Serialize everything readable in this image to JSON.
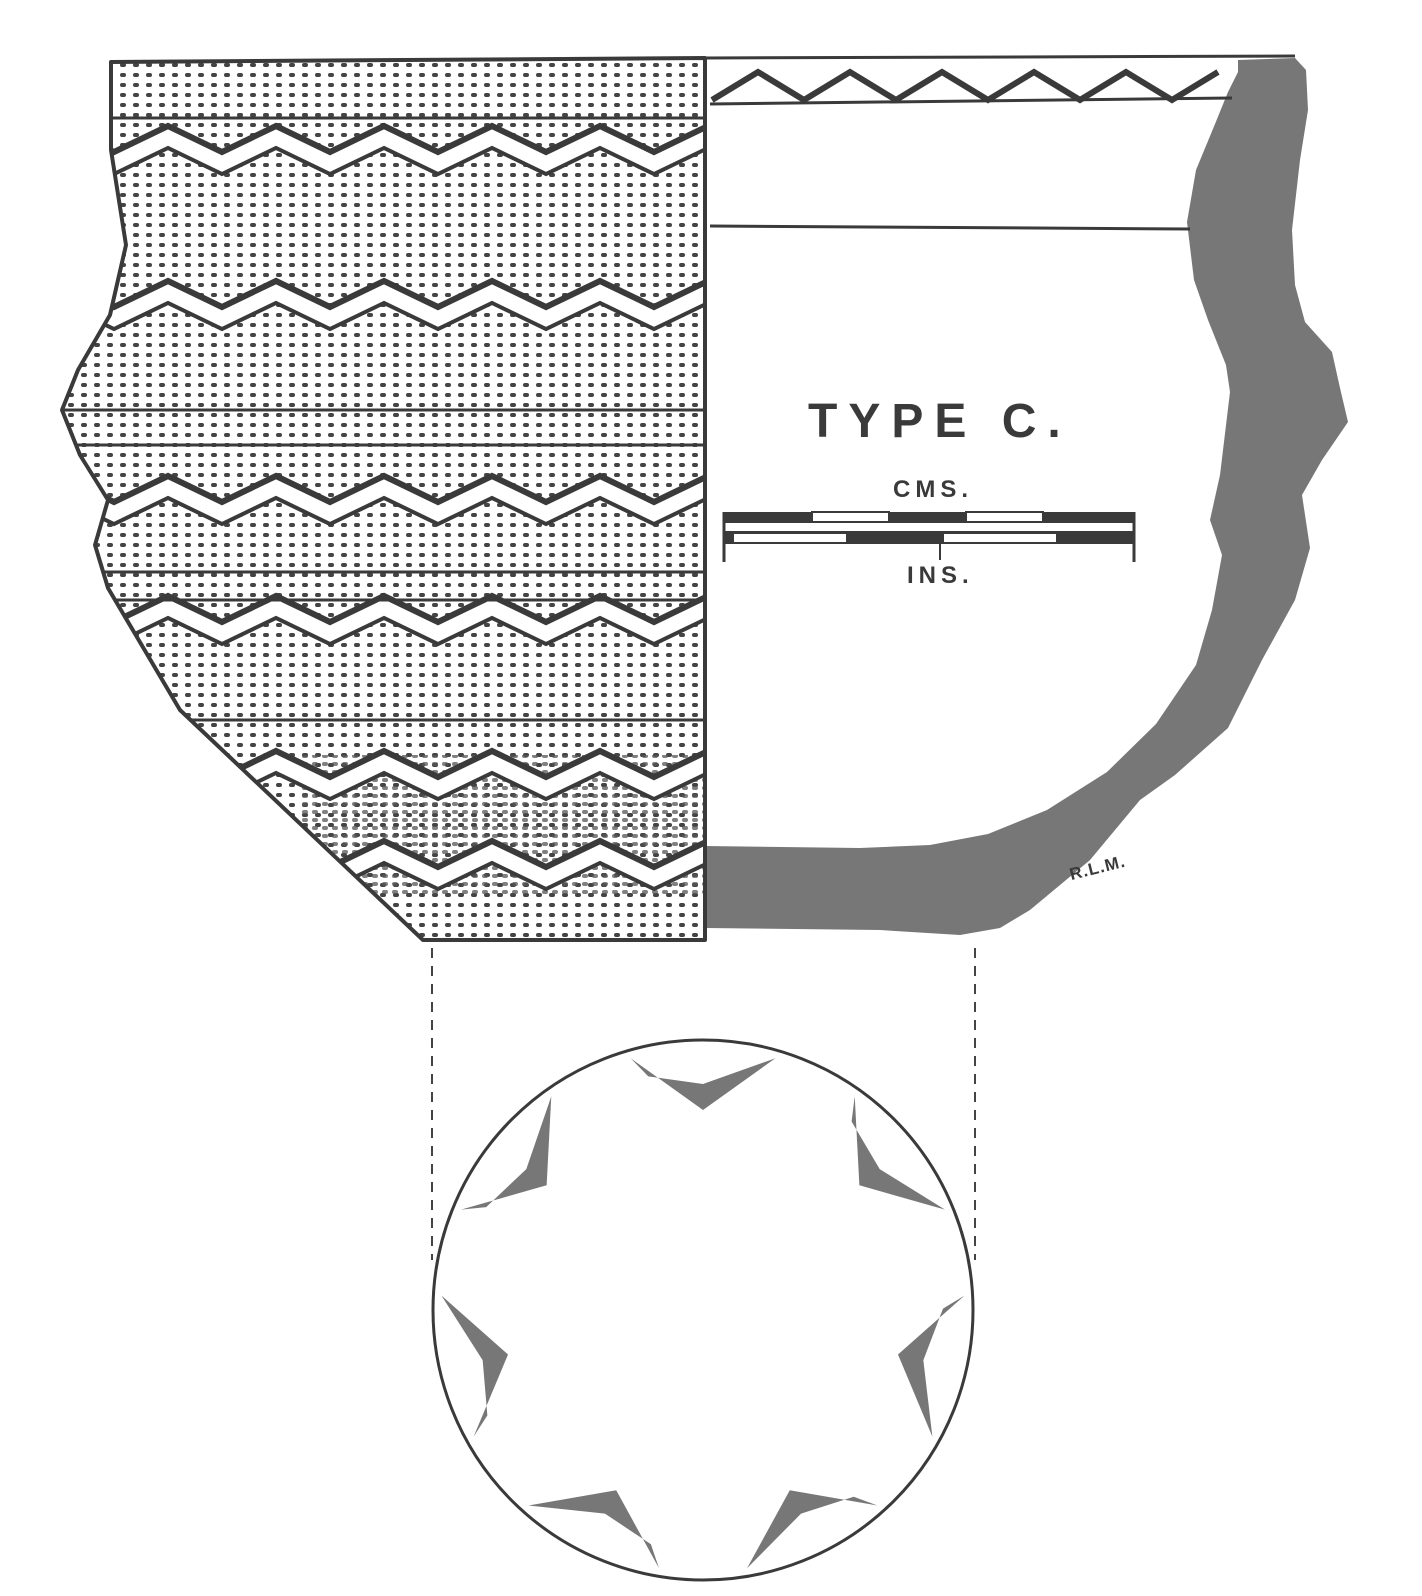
{
  "figure": {
    "type_label": "TYPE C.",
    "scale_top_unit": "CMS.",
    "scale_bottom_unit": "INS.",
    "artist_initials": "R.L.M."
  },
  "colors": {
    "ink": "#3a3a3a",
    "fill": "#777777",
    "paper": "#ffffff"
  },
  "motifs": {
    "base_star_points": 7
  }
}
